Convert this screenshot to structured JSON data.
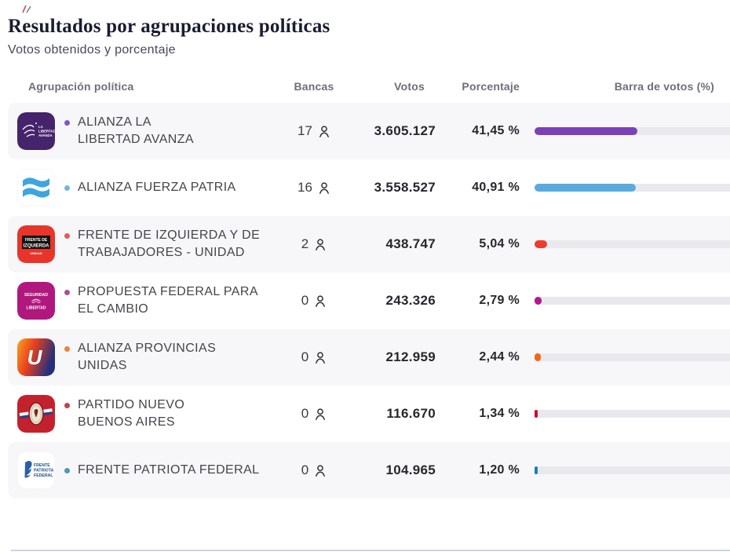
{
  "page": {
    "title": "Resultados por agrupaciones políticas",
    "subtitle": "Votos obtenidos y porcentaje"
  },
  "table": {
    "columns": {
      "party": "Agrupación política",
      "seats": "Bancas",
      "votes": "Votos",
      "percent": "Porcentaje",
      "bar": "Barra de votos (%)"
    },
    "rows": [
      {
        "name": "ALIANZA LA\nLIBERTAD AVANZA",
        "seats": "17",
        "votes": "3.605.127",
        "percent": "41,45 %",
        "pct": 41.45,
        "bar_color": "#7b42b8",
        "dot_color": "#7e57c5",
        "logo": {
          "bg": "#46246b",
          "lines": [
            "LA",
            "LIBERTAD",
            "AVANZA"
          ]
        }
      },
      {
        "name": "ALIANZA FUERZA PATRIA",
        "seats": "16",
        "votes": "3.558.527",
        "percent": "40,91 %",
        "pct": 40.91,
        "bar_color": "#59aade",
        "dot_color": "#74b5e2",
        "logo": {
          "bg": "#ffffff",
          "wave_color": "#3fa5dc"
        }
      },
      {
        "name": "FRENTE DE IZQUIERDA Y DE\nTRABAJADORES - UNIDAD",
        "seats": "2",
        "votes": "438.747",
        "percent": "5,04 %",
        "pct": 5.04,
        "bar_color": "#ee3b2e",
        "dot_color": "#e25c55",
        "logo": {
          "bg": "#e8352b",
          "lines": [
            "FRENTE DE",
            "IZQUIERDA",
            "UNIDAD"
          ]
        }
      },
      {
        "name": "PROPUESTA FEDERAL PARA\nEL CAMBIO",
        "seats": "0",
        "votes": "243.326",
        "percent": "2,79 %",
        "pct": 2.79,
        "bar_color": "#b0198b",
        "dot_color": "#a8509b",
        "logo": {
          "bg": "#b0187e",
          "lines": [
            "SEGURIDAD",
            "LIBERTAD"
          ]
        }
      },
      {
        "name": "ALIANZA PROVINCIAS\nUNIDAS",
        "seats": "0",
        "votes": "212.959",
        "percent": "2,44 %",
        "pct": 2.44,
        "bar_color": "#f3661c",
        "dot_color": "#ec8040",
        "logo": {
          "letter": "U"
        }
      },
      {
        "name": "PARTIDO NUEVO\nBUENOS AIRES",
        "seats": "0",
        "votes": "116.670",
        "percent": "1,34 %",
        "pct": 1.34,
        "bar_color": "#c51230",
        "dot_color": "#c4404f",
        "logo": {
          "bg": "#c4212e"
        }
      },
      {
        "name": "FRENTE PATRIOTA FEDERAL",
        "seats": "0",
        "votes": "104.965",
        "percent": "1,20 %",
        "pct": 1.2,
        "bar_color": "#1e80ad",
        "dot_color": "#4e95ba",
        "logo": {
          "bg": "#ffffff",
          "lines": [
            "FRENTE",
            "PATRIOTA",
            "FEDERAL"
          ]
        }
      }
    ]
  },
  "chart_data": {
    "type": "bar",
    "orientation": "horizontal",
    "title": "Resultados por agrupaciones políticas",
    "subtitle": "Votos obtenidos y porcentaje",
    "categories": [
      "ALIANZA LA LIBERTAD AVANZA",
      "ALIANZA FUERZA PATRIA",
      "FRENTE DE IZQUIERDA Y DE TRABAJADORES - UNIDAD",
      "PROPUESTA FEDERAL PARA EL CAMBIO",
      "ALIANZA PROVINCIAS UNIDAS",
      "PARTIDO NUEVO BUENOS AIRES",
      "FRENTE PATRIOTA FEDERAL"
    ],
    "series": [
      {
        "name": "Bancas",
        "values": [
          17,
          16,
          2,
          0,
          0,
          0,
          0
        ]
      },
      {
        "name": "Votos",
        "values": [
          3605127,
          3558527,
          438747,
          243326,
          212959,
          116670,
          104965
        ]
      },
      {
        "name": "Porcentaje",
        "values": [
          41.45,
          40.91,
          5.04,
          2.79,
          2.44,
          1.34,
          1.2
        ]
      }
    ],
    "bar_colors": [
      "#7b42b8",
      "#59aade",
      "#ee3b2e",
      "#b0198b",
      "#f3661c",
      "#c51230",
      "#1e80ad"
    ],
    "bar_axis_label": "Barra de votos (%)",
    "xlim": [
      0,
      100
    ],
    "grid": false,
    "legend": "none"
  }
}
